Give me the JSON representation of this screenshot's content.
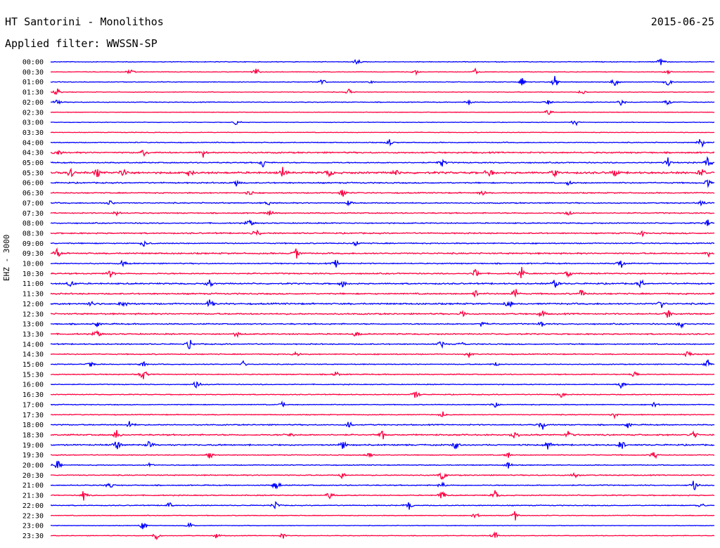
{
  "header": {
    "station": "HT Santorini - Monolithos",
    "date": "2015-06-25",
    "filter_label": "Applied filter:",
    "filter_value": "WWSSN-SP"
  },
  "channel_label": "EHZ - 3000",
  "colors": {
    "even_row": "#0000ff",
    "odd_row": "#ff0040"
  },
  "chart_data": {
    "type": "line",
    "title": "HT Santorini - Monolithos",
    "subtitle": "Applied filter: WWSSN-SP",
    "ylabel": "EHZ - 3000",
    "xlabel": "",
    "rows": [
      "00:00",
      "00:30",
      "01:00",
      "01:30",
      "02:00",
      "02:30",
      "03:00",
      "03:30",
      "04:00",
      "04:30",
      "05:00",
      "05:30",
      "06:00",
      "06:30",
      "07:00",
      "07:30",
      "08:00",
      "08:30",
      "09:00",
      "09:30",
      "10:00",
      "10:30",
      "11:00",
      "11:30",
      "12:00",
      "12:30",
      "13:00",
      "13:30",
      "14:00",
      "14:30",
      "15:00",
      "15:30",
      "16:00",
      "16:30",
      "17:00",
      "17:30",
      "18:00",
      "18:30",
      "19:00",
      "19:30",
      "20:00",
      "20:30",
      "21:00",
      "21:30",
      "22:00",
      "22:30",
      "23:00",
      "23:30"
    ],
    "x_range_minutes": [
      0,
      30
    ],
    "activity": [
      0.25,
      0.2,
      0.25,
      0.2,
      0.25,
      0.2,
      0.2,
      0.2,
      0.3,
      0.5,
      0.4,
      0.7,
      0.45,
      0.4,
      0.4,
      0.4,
      0.4,
      0.45,
      0.4,
      0.5,
      0.4,
      0.45,
      0.5,
      0.5,
      0.55,
      0.5,
      0.45,
      0.45,
      0.4,
      0.35,
      0.3,
      0.35,
      0.3,
      0.3,
      0.3,
      0.3,
      0.4,
      0.5,
      0.5,
      0.3,
      0.3,
      0.35,
      0.35,
      0.35,
      0.3,
      0.25,
      0.2,
      0.2
    ],
    "events": [
      [
        [
          0.46,
          0.9
        ],
        [
          0.92,
          0.8
        ]
      ],
      [
        [
          0.12,
          0.6
        ],
        [
          0.31,
          0.7
        ],
        [
          0.55,
          0.5
        ],
        [
          0.64,
          0.5
        ],
        [
          0.93,
          0.4
        ]
      ],
      [
        [
          0.41,
          0.6
        ],
        [
          0.48,
          0.6
        ],
        [
          0.71,
          0.7
        ],
        [
          0.76,
          1.0
        ],
        [
          0.85,
          1.0
        ],
        [
          0.93,
          0.7
        ]
      ],
      [
        [
          0.01,
          0.7
        ],
        [
          0.45,
          0.6
        ],
        [
          0.8,
          0.5
        ]
      ],
      [
        [
          0.01,
          0.5
        ],
        [
          0.63,
          0.5
        ],
        [
          0.75,
          0.5
        ],
        [
          0.86,
          0.6
        ],
        [
          0.93,
          0.7
        ]
      ],
      [
        [
          0.75,
          0.8
        ]
      ],
      [
        [
          0.28,
          0.5
        ],
        [
          0.79,
          0.7
        ]
      ],
      [],
      [
        [
          0.51,
          0.8
        ],
        [
          0.98,
          1.0
        ]
      ],
      [
        [
          0.01,
          0.9
        ],
        [
          0.14,
          0.6
        ],
        [
          0.23,
          0.6
        ]
      ],
      [
        [
          0.32,
          0.7
        ],
        [
          0.59,
          0.7
        ],
        [
          0.93,
          0.9
        ],
        [
          0.99,
          1.0
        ]
      ],
      [
        [
          0.03,
          0.9
        ],
        [
          0.07,
          0.9
        ],
        [
          0.11,
          0.9
        ],
        [
          0.21,
          0.9
        ],
        [
          0.35,
          0.9
        ],
        [
          0.42,
          0.8
        ],
        [
          0.52,
          0.8
        ],
        [
          0.66,
          0.8
        ],
        [
          0.76,
          0.8
        ],
        [
          0.85,
          0.7
        ],
        [
          0.98,
          0.9
        ]
      ],
      [
        [
          0.28,
          0.6
        ],
        [
          0.78,
          0.5
        ],
        [
          0.99,
          0.6
        ]
      ],
      [
        [
          0.3,
          0.5
        ],
        [
          0.44,
          0.8
        ],
        [
          0.65,
          0.5
        ]
      ],
      [
        [
          0.09,
          0.6
        ],
        [
          0.33,
          0.6
        ],
        [
          0.45,
          0.7
        ],
        [
          0.98,
          0.6
        ]
      ],
      [
        [
          0.1,
          0.5
        ],
        [
          0.33,
          0.6
        ],
        [
          0.78,
          0.6
        ]
      ],
      [
        [
          0.3,
          0.8
        ],
        [
          0.99,
          0.6
        ]
      ],
      [
        [
          0.31,
          0.9
        ],
        [
          0.89,
          0.6
        ]
      ],
      [
        [
          0.14,
          0.7
        ],
        [
          0.46,
          0.5
        ]
      ],
      [
        [
          0.01,
          1.0
        ],
        [
          0.37,
          0.8
        ],
        [
          0.99,
          0.5
        ]
      ],
      [
        [
          0.11,
          0.9
        ],
        [
          0.43,
          0.6
        ],
        [
          0.86,
          0.9
        ]
      ],
      [
        [
          0.09,
          0.8
        ],
        [
          0.64,
          0.9
        ],
        [
          0.71,
          0.9
        ],
        [
          0.78,
          0.7
        ]
      ],
      [
        [
          0.03,
          0.8
        ],
        [
          0.24,
          0.8
        ],
        [
          0.44,
          0.7
        ],
        [
          0.76,
          0.9
        ],
        [
          0.89,
          0.7
        ]
      ],
      [
        [
          0.64,
          0.7
        ],
        [
          0.7,
          0.9
        ],
        [
          0.8,
          0.8
        ]
      ],
      [
        [
          0.06,
          0.7
        ],
        [
          0.11,
          0.8
        ],
        [
          0.24,
          0.8
        ],
        [
          0.69,
          0.8
        ],
        [
          0.92,
          0.7
        ]
      ],
      [
        [
          0.62,
          0.9
        ],
        [
          0.74,
          0.9
        ],
        [
          0.93,
          0.8
        ]
      ],
      [
        [
          0.07,
          0.6
        ],
        [
          0.65,
          0.6
        ],
        [
          0.74,
          0.7
        ],
        [
          0.95,
          0.8
        ]
      ],
      [
        [
          0.07,
          0.8
        ],
        [
          0.28,
          0.5
        ],
        [
          0.46,
          0.5
        ]
      ],
      [
        [
          0.21,
          0.9
        ],
        [
          0.59,
          0.9
        ],
        [
          0.62,
          0.5
        ]
      ],
      [
        [
          0.37,
          0.5
        ],
        [
          0.63,
          0.5
        ],
        [
          0.96,
          0.6
        ]
      ],
      [
        [
          0.06,
          0.5
        ],
        [
          0.14,
          0.7
        ],
        [
          0.29,
          0.5
        ],
        [
          0.67,
          0.5
        ],
        [
          0.99,
          0.7
        ]
      ],
      [
        [
          0.14,
          1.0
        ],
        [
          0.43,
          0.7
        ],
        [
          0.88,
          0.7
        ]
      ],
      [
        [
          0.22,
          0.8
        ],
        [
          0.86,
          0.7
        ]
      ],
      [
        [
          0.55,
          0.9
        ],
        [
          0.77,
          0.5
        ]
      ],
      [
        [
          0.35,
          0.5
        ],
        [
          0.67,
          0.5
        ],
        [
          0.91,
          0.6
        ]
      ],
      [
        [
          0.59,
          0.6
        ],
        [
          0.85,
          0.5
        ]
      ],
      [
        [
          0.12,
          0.9
        ],
        [
          0.45,
          0.8
        ],
        [
          0.74,
          1.0
        ],
        [
          0.87,
          0.6
        ]
      ],
      [
        [
          0.1,
          0.9
        ],
        [
          0.36,
          0.7
        ],
        [
          0.5,
          0.9
        ],
        [
          0.7,
          0.9
        ],
        [
          0.78,
          0.7
        ],
        [
          0.97,
          0.7
        ]
      ],
      [
        [
          0.1,
          1.0
        ],
        [
          0.15,
          0.9
        ],
        [
          0.44,
          0.9
        ],
        [
          0.61,
          0.8
        ],
        [
          0.75,
          0.9
        ],
        [
          0.86,
          0.9
        ]
      ],
      [
        [
          0.24,
          0.7
        ],
        [
          0.48,
          0.6
        ],
        [
          0.69,
          0.6
        ],
        [
          0.91,
          0.9
        ]
      ],
      [
        [
          0.01,
          1.0
        ],
        [
          0.15,
          0.6
        ],
        [
          0.69,
          0.6
        ]
      ],
      [
        [
          0.44,
          0.7
        ],
        [
          0.59,
          1.0
        ],
        [
          0.79,
          0.6
        ]
      ],
      [
        [
          0.09,
          0.8
        ],
        [
          0.34,
          1.0
        ],
        [
          0.59,
          0.8
        ],
        [
          0.97,
          1.0
        ]
      ],
      [
        [
          0.05,
          1.0
        ],
        [
          0.42,
          0.9
        ],
        [
          0.59,
          0.9
        ],
        [
          0.67,
          0.9
        ]
      ],
      [
        [
          0.18,
          0.8
        ],
        [
          0.34,
          0.8
        ],
        [
          0.54,
          0.9
        ],
        [
          0.98,
          0.6
        ]
      ],
      [
        [
          0.64,
          0.7
        ],
        [
          0.7,
          0.8
        ]
      ],
      [
        [
          0.14,
          0.9
        ],
        [
          0.21,
          0.6
        ]
      ],
      [
        [
          0.16,
          0.8
        ],
        [
          0.25,
          0.6
        ],
        [
          0.35,
          0.5
        ],
        [
          0.67,
          1.0
        ]
      ]
    ]
  }
}
